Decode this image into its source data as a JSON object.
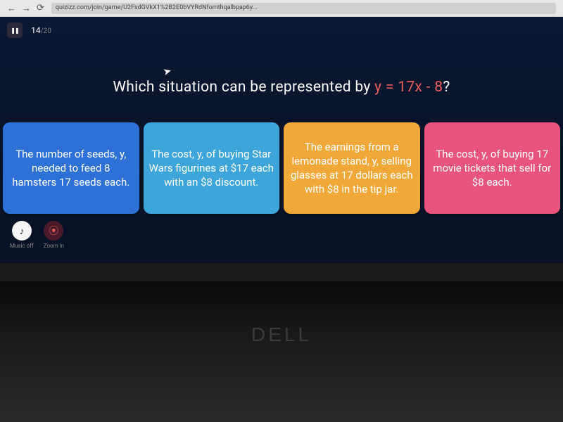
{
  "browser": {
    "url": "quizizz.com/join/game/U2FsdGVkX1%2B2E0bVYRdNfomthqalbpap6y..."
  },
  "quiz": {
    "current_question": "14",
    "total_questions": "/20",
    "question_prefix": "Which situation can be represented by ",
    "equation": "y = 17x - 8",
    "question_suffix": "?",
    "answers": [
      {
        "text": "The number of seeds, y, needed to feed 8 hamsters 17 seeds each.",
        "color": "#2d70d6"
      },
      {
        "text": "The cost, y, of buying Star Wars figurines at $17 each with an $8 discount.",
        "color": "#3da5d9"
      },
      {
        "text": "The earnings from a lemonade stand, y, selling glasses at 17 dollars each with $8 in the tip jar.",
        "color": "#f0a838"
      },
      {
        "text": "The cost, y, of buying 17 movie tickets that sell for $8 each.",
        "color": "#e8547c"
      }
    ]
  },
  "controls": {
    "music_label": "Music off",
    "zoom_label": "Zoom in"
  },
  "laptop": {
    "brand": "DELL"
  },
  "colors": {
    "equation": "#e85d5d",
    "quiz_bg_top": "#0a1832",
    "quiz_bg_bottom": "#081226"
  }
}
